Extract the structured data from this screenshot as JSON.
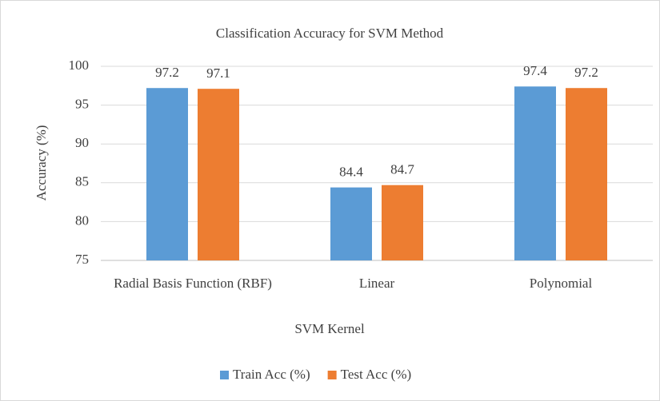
{
  "chart_data": {
    "type": "bar",
    "title": "Classification Accuracy for SVM Method",
    "x_label": "SVM Kernel",
    "y_label": "Accuracy (%)",
    "categories": [
      "Radial Basis Function (RBF)",
      "Linear",
      "Polynomial"
    ],
    "series": [
      {
        "name": "Train Acc (%)",
        "color": "#5b9bd5",
        "values": [
          97.2,
          84.4,
          97.4
        ]
      },
      {
        "name": "Test Acc (%)",
        "color": "#ed7d31",
        "values": [
          97.1,
          84.7,
          97.2
        ]
      }
    ],
    "ylim": [
      75,
      100
    ],
    "yticks": [
      75,
      80,
      85,
      90,
      95,
      100
    ],
    "grid": true,
    "legend": "bottom"
  }
}
